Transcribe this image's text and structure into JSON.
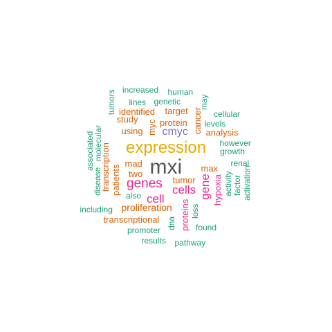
{
  "palette": {
    "teal": "#1B9E77",
    "orange": "#D95F02",
    "purple": "#7570B3",
    "magenta": "#E7298A",
    "gold": "#E6AB02",
    "gray": "#555555"
  },
  "words": [
    {
      "text": "mxi",
      "color": "gray"
    },
    {
      "text": "expression",
      "color": "gold"
    },
    {
      "text": "genes",
      "color": "magenta"
    },
    {
      "text": "cells",
      "color": "magenta"
    },
    {
      "text": "cell",
      "color": "magenta"
    },
    {
      "text": "gene",
      "color": "magenta"
    },
    {
      "text": "cmyc",
      "color": "purple"
    },
    {
      "text": "myc",
      "color": "orange"
    },
    {
      "text": "cancer",
      "color": "orange"
    },
    {
      "text": "protein",
      "color": "orange"
    },
    {
      "text": "target",
      "color": "orange"
    },
    {
      "text": "identified",
      "color": "orange"
    },
    {
      "text": "analysis",
      "color": "orange"
    },
    {
      "text": "study",
      "color": "orange"
    },
    {
      "text": "using",
      "color": "orange"
    },
    {
      "text": "mad",
      "color": "orange"
    },
    {
      "text": "two",
      "color": "orange"
    },
    {
      "text": "max",
      "color": "orange"
    },
    {
      "text": "tumor",
      "color": "orange"
    },
    {
      "text": "patients",
      "color": "orange"
    },
    {
      "text": "transcription",
      "color": "orange"
    },
    {
      "text": "proliferation",
      "color": "orange"
    },
    {
      "text": "transcriptional",
      "color": "orange"
    },
    {
      "text": "hypoxia",
      "color": "magenta"
    },
    {
      "text": "proteins",
      "color": "magenta"
    },
    {
      "text": "increased",
      "color": "teal"
    },
    {
      "text": "human",
      "color": "teal"
    },
    {
      "text": "tumors",
      "color": "teal"
    },
    {
      "text": "lines",
      "color": "teal"
    },
    {
      "text": "genetic",
      "color": "teal"
    },
    {
      "text": "may",
      "color": "teal"
    },
    {
      "text": "cellular",
      "color": "teal"
    },
    {
      "text": "levels",
      "color": "teal"
    },
    {
      "text": "however",
      "color": "teal"
    },
    {
      "text": "growth",
      "color": "teal"
    },
    {
      "text": "renal",
      "color": "teal"
    },
    {
      "text": "activity",
      "color": "teal"
    },
    {
      "text": "factor",
      "color": "teal"
    },
    {
      "text": "activation",
      "color": "teal"
    },
    {
      "text": "associated",
      "color": "teal"
    },
    {
      "text": "molecular",
      "color": "teal"
    },
    {
      "text": "disease",
      "color": "teal"
    },
    {
      "text": "also",
      "color": "teal"
    },
    {
      "text": "including",
      "color": "teal"
    },
    {
      "text": "loss",
      "color": "teal"
    },
    {
      "text": "dna",
      "color": "teal"
    },
    {
      "text": "found",
      "color": "teal"
    },
    {
      "text": "promoter",
      "color": "teal"
    },
    {
      "text": "results",
      "color": "teal"
    },
    {
      "text": "pathway",
      "color": "teal"
    }
  ]
}
